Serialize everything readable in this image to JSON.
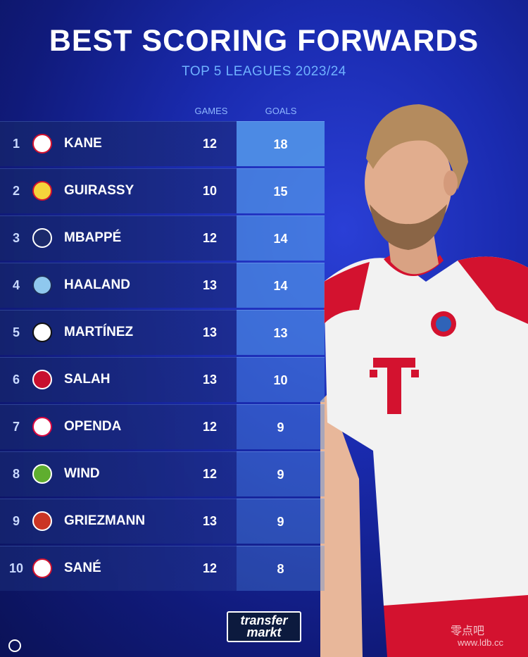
{
  "header": {
    "title": "BEST SCORING FORWARDS",
    "subtitle": "TOP 5 LEAGUES 2023/24"
  },
  "columns": {
    "games": "GAMES",
    "goals": "GOALS"
  },
  "rows": [
    {
      "rank": "1",
      "name": "KANE",
      "games": "12",
      "goals": "18",
      "club_icon": "bayern-munich-crest-icon"
    },
    {
      "rank": "2",
      "name": "GUIRASSY",
      "games": "10",
      "goals": "15",
      "club_icon": "vfb-stuttgart-crest-icon"
    },
    {
      "rank": "3",
      "name": "MBAPPÉ",
      "games": "12",
      "goals": "14",
      "club_icon": "psg-crest-icon"
    },
    {
      "rank": "4",
      "name": "HAALAND",
      "games": "13",
      "goals": "14",
      "club_icon": "man-city-crest-icon"
    },
    {
      "rank": "5",
      "name": "MARTÍNEZ",
      "games": "13",
      "goals": "13",
      "club_icon": "inter-milan-crest-icon"
    },
    {
      "rank": "6",
      "name": "SALAH",
      "games": "13",
      "goals": "10",
      "club_icon": "liverpool-crest-icon"
    },
    {
      "rank": "7",
      "name": "OPENDA",
      "games": "12",
      "goals": "9",
      "club_icon": "rb-leipzig-crest-icon"
    },
    {
      "rank": "8",
      "name": "WIND",
      "games": "12",
      "goals": "9",
      "club_icon": "wolfsburg-crest-icon"
    },
    {
      "rank": "9",
      "name": "GRIEZMANN",
      "games": "13",
      "goals": "9",
      "club_icon": "atletico-madrid-crest-icon"
    },
    {
      "rank": "10",
      "name": "SANÉ",
      "games": "12",
      "goals": "8",
      "club_icon": "bayern-munich-crest-icon"
    }
  ],
  "logo": {
    "line1": "transfer",
    "line2": "markt"
  },
  "watermark": {
    "line1": "零点吧",
    "line2": "www.ldb.cc"
  },
  "colors": {
    "background": "#1a2bb0",
    "subtitle": "#6fb2ff",
    "goals_cell_top": "#4f8fe6",
    "goals_cell_bottom": "#1f3c9e",
    "jersey_red": "#d3122f"
  }
}
